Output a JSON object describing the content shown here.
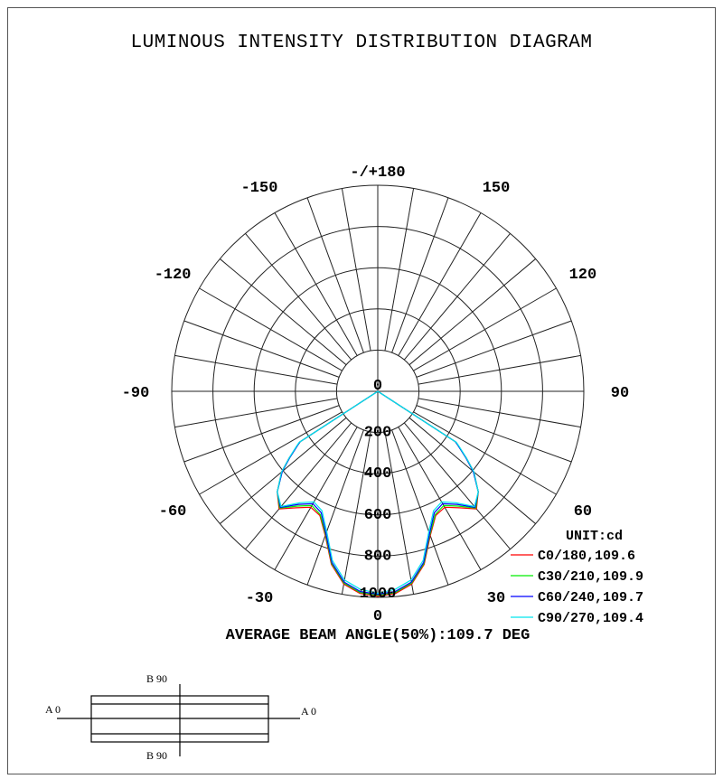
{
  "chart_data": {
    "type": "polar-line",
    "title": "LUMINOUS INTENSITY DISTRIBUTION DIAGRAM",
    "unit_label": "UNIT:cd",
    "radial_ticks": [
      "0",
      "200",
      "400",
      "600",
      "800",
      "1000"
    ],
    "rlim": [
      0,
      1000
    ],
    "angle_ticks": [
      {
        "angle": 180,
        "label": "-/+180"
      },
      {
        "angle": 150,
        "label": "150"
      },
      {
        "angle": 120,
        "label": "120"
      },
      {
        "angle": 90,
        "label": "90"
      },
      {
        "angle": 60,
        "label": "60"
      },
      {
        "angle": 30,
        "label": "30"
      },
      {
        "angle": 0,
        "label": "0"
      },
      {
        "angle": -30,
        "label": "-30"
      },
      {
        "angle": -60,
        "label": "-60"
      },
      {
        "angle": -90,
        "label": "-90"
      },
      {
        "angle": -120,
        "label": "-120"
      },
      {
        "angle": -150,
        "label": "-150"
      }
    ],
    "grid": true,
    "legend_position": "bottom-right",
    "angles": [
      0,
      5,
      10,
      15,
      20,
      25,
      30,
      35,
      40,
      45,
      50,
      53,
      56,
      57,
      58,
      90,
      180
    ],
    "series": [
      {
        "name": "C0/180,109.6",
        "color": "#ff0000",
        "values": [
          995,
          985,
          950,
          870,
          745,
          665,
          650,
          690,
          745,
          690,
          610,
          540,
          470,
          450,
          0,
          0,
          0
        ]
      },
      {
        "name": "C30/210,109.9",
        "color": "#00ee00",
        "values": [
          990,
          980,
          945,
          865,
          740,
          660,
          640,
          680,
          740,
          690,
          605,
          535,
          470,
          450,
          0,
          0,
          0
        ]
      },
      {
        "name": "C60/240,109.7",
        "color": "#0000ff",
        "values": [
          985,
          975,
          940,
          860,
          735,
          650,
          630,
          670,
          735,
          690,
          605,
          535,
          470,
          450,
          0,
          0,
          0
        ]
      },
      {
        "name": "C90/270,109.4",
        "color": "#00e5ee",
        "values": [
          980,
          965,
          930,
          850,
          725,
          640,
          620,
          660,
          730,
          690,
          610,
          540,
          475,
          455,
          0,
          0,
          0
        ]
      }
    ],
    "annotation": "AVERAGE BEAM ANGLE(50%):109.7 DEG"
  },
  "luminaire_diagram": {
    "top_label": "B 90",
    "bottom_label": "B 90",
    "left_label": "A 0",
    "right_label": "A 0"
  }
}
